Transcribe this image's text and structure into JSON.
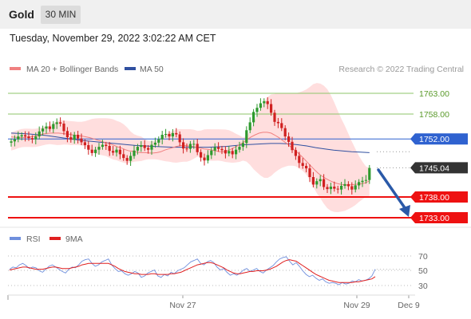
{
  "header": {
    "title": "Gold",
    "timeframe": "30 MIN",
    "datetime": "Tuesday, November 29, 2022 3:02:22 AM CET"
  },
  "legend": {
    "ma20_label": "MA 20 + Bollinger Bands",
    "ma50_label": "MA 50",
    "ma20_color": "#f08080",
    "ma50_color": "#3050a0",
    "research": "Research © 2022 Trading Central"
  },
  "rsi_legend": {
    "rsi_label": "RSI",
    "ma_label": "9MA",
    "rsi_color": "#6f8fdd",
    "ma_color": "#e02020"
  },
  "levels": {
    "r2": "1763.00",
    "r1": "1758.00",
    "pivot": "1752.00",
    "last": "1745.04",
    "s1": "1738.00",
    "s2": "1733.00"
  },
  "x_axis": {
    "date1": "Nov 27",
    "date2": "Nov 29",
    "date3": "Dec 9"
  },
  "rsi_axis": {
    "t70": "70",
    "t50": "50",
    "t30": "30"
  },
  "colors": {
    "up": "#2e9a2e",
    "down": "#d02020",
    "resistance": "#8cc56a",
    "pivot": "#2f62d0",
    "support": "#ee1111",
    "last": "#333333",
    "arrow": "#2a59a8",
    "band": "#ffd3d3"
  },
  "chart_data": [
    {
      "type": "candlestick",
      "title": "Gold",
      "interval": "30 MIN",
      "ylim": [
        1733,
        1765
      ],
      "x_ticks": [
        "Nov 27",
        "Nov 29",
        "Dec 9"
      ],
      "closes": [
        1751.4,
        1751.9,
        1752.6,
        1752.9,
        1752.6,
        1752.2,
        1751.9,
        1752.6,
        1753.8,
        1754.5,
        1755.0,
        1754.4,
        1755.6,
        1756.0,
        1755.7,
        1753.9,
        1752.4,
        1751.8,
        1753.0,
        1752.1,
        1751.2,
        1750.5,
        1749.4,
        1748.6,
        1749.4,
        1750.1,
        1750.6,
        1750.3,
        1749.1,
        1748.7,
        1749.4,
        1748.3,
        1747.4,
        1746.7,
        1747.9,
        1749.2,
        1750.1,
        1750.5,
        1749.8,
        1749.4,
        1750.6,
        1751.1,
        1751.9,
        1753.0,
        1753.2,
        1752.6,
        1753.4,
        1753.1,
        1751.2,
        1749.7,
        1749.6,
        1750.8,
        1750.8,
        1748.8,
        1747.5,
        1746.8,
        1748.1,
        1749.2,
        1750.0,
        1749.6,
        1749.3,
        1748.5,
        1749.1,
        1748.3,
        1749.4,
        1750.1,
        1751.0,
        1754.1,
        1756.0,
        1758.5,
        1759.5,
        1760.6,
        1761.1,
        1760.4,
        1758.3,
        1756.1,
        1755.8,
        1754.6,
        1752.6,
        1751.3,
        1749.3,
        1747.9,
        1746.2,
        1745.5,
        1744.9,
        1742.8,
        1741.0,
        1741.8,
        1742.3,
        1740.4,
        1739.9,
        1740.5,
        1740.0,
        1739.8,
        1740.7,
        1741.1,
        1740.6,
        1739.8,
        1740.8,
        1741.6,
        1741.9,
        1742.1,
        1745.0
      ],
      "ma20": [
        1752.5,
        1752.4,
        1752.3,
        1752.3,
        1752.4,
        1752.5,
        1752.7,
        1752.9,
        1753.2,
        1753.3,
        1753.4,
        1753.4,
        1753.4,
        1753.3,
        1753.2,
        1753.1,
        1752.9,
        1752.8,
        1752.7,
        1752.5,
        1752.3,
        1752.0,
        1751.7,
        1751.4,
        1751.1,
        1750.8,
        1750.5,
        1750.1,
        1749.8,
        1749.4,
        1749.1,
        1749.0,
        1748.8,
        1748.7,
        1748.7,
        1748.6,
        1748.6,
        1748.7,
        1748.9,
        1749.3,
        1749.6,
        1749.9,
        1750.2,
        1750.4,
        1750.4,
        1750.3,
        1750.2,
        1750.0,
        1749.8,
        1749.6,
        1749.5,
        1749.3,
        1749.1,
        1748.9,
        1748.9,
        1749.2,
        1749.6,
        1750.1,
        1750.6,
        1751.2,
        1751.9,
        1752.5,
        1753.0,
        1753.4,
        1753.6,
        1753.6,
        1753.4,
        1752.9,
        1752.3,
        1751.6,
        1750.9,
        1750.1,
        1749.3,
        1748.5,
        1747.6,
        1746.6,
        1745.6,
        1744.6,
        1743.7,
        1743.0,
        1742.4,
        1741.9,
        1741.5,
        1741.2,
        1741.0,
        1740.9,
        1740.9,
        1741.0,
        1741.1,
        1741.2,
        1741.4,
        1741.9
      ],
      "ma50": [
        1753.4,
        1753.3,
        1753.2,
        1753.0,
        1752.8,
        1752.5,
        1752.2,
        1751.9,
        1751.6,
        1751.4,
        1751.2,
        1751.0,
        1750.8,
        1750.6,
        1750.4,
        1750.3,
        1750.2,
        1750.1,
        1750.0,
        1750.0,
        1750.0,
        1750.0,
        1750.0,
        1750.1,
        1750.2,
        1750.4,
        1750.6,
        1750.7,
        1750.8,
        1750.9,
        1750.9,
        1750.8,
        1750.6,
        1750.3,
        1749.9,
        1749.6,
        1749.3,
        1749.1,
        1748.9,
        1748.8,
        1748.7
      ]
    },
    {
      "type": "line",
      "title": "RSI",
      "ylim": [
        20,
        80
      ],
      "yticks": [
        70,
        50,
        30
      ],
      "series": [
        {
          "name": "RSI",
          "values": [
            52,
            55,
            54,
            58,
            60,
            57,
            53,
            55,
            54,
            50,
            48,
            52,
            56,
            58,
            55,
            52,
            49,
            47,
            52,
            55,
            54,
            58,
            63,
            65,
            66,
            60,
            56,
            58,
            62,
            64,
            66,
            58,
            53,
            49,
            50,
            46,
            44,
            46,
            49,
            47,
            41,
            43,
            47,
            49,
            51,
            43,
            41,
            45,
            43,
            48,
            46,
            50,
            52,
            54,
            58,
            62,
            64,
            66,
            60,
            58,
            62,
            64,
            61,
            55,
            51,
            53,
            48,
            44,
            46,
            44,
            47,
            51,
            53,
            49,
            51,
            53,
            49,
            47,
            51,
            54,
            57,
            62,
            66,
            68,
            69,
            63,
            58,
            61,
            56,
            50,
            45,
            42,
            44,
            40,
            37,
            39,
            35,
            33,
            34,
            33,
            31,
            34,
            32,
            33,
            36,
            35,
            38,
            36,
            37,
            39,
            43,
            52
          ]
        },
        {
          "name": "9MA",
          "values": [
            51,
            52,
            53,
            54,
            55,
            55,
            54,
            53,
            52,
            52,
            52,
            53,
            54,
            55,
            55,
            54,
            53,
            53,
            53,
            54,
            55,
            56,
            58,
            59,
            60,
            60,
            60,
            60,
            60,
            60,
            60,
            58,
            56,
            53,
            51,
            49,
            48,
            47,
            46,
            46,
            45,
            45,
            45,
            46,
            46,
            45,
            45,
            45,
            45,
            46,
            46,
            47,
            48,
            50,
            52,
            54,
            56,
            58,
            59,
            60,
            61,
            61,
            60,
            58,
            56,
            54,
            51,
            49,
            47,
            46,
            46,
            47,
            48,
            49,
            49,
            50,
            50,
            50,
            51,
            52,
            54,
            56,
            59,
            62,
            64,
            65,
            64,
            63,
            60,
            57,
            54,
            51,
            48,
            45,
            43,
            41,
            39,
            37,
            36,
            35,
            34,
            34,
            34,
            34,
            34,
            35,
            35,
            36,
            37,
            38,
            39,
            42
          ]
        }
      ]
    }
  ]
}
